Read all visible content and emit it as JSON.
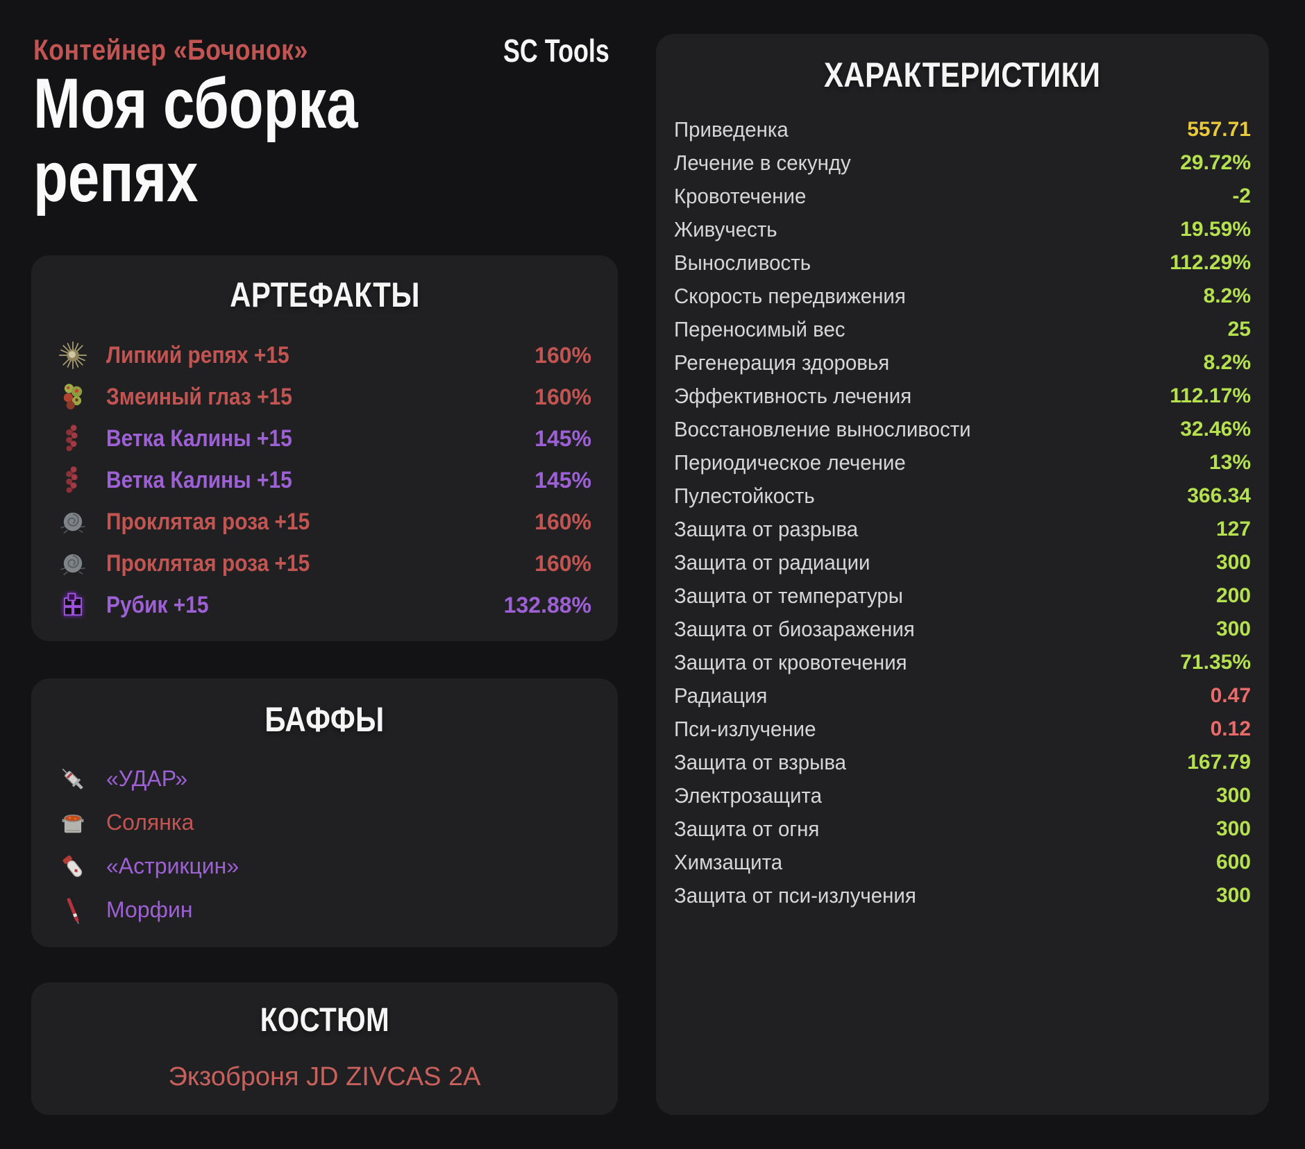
{
  "header": {
    "container_label": "Контейнер «Бочонок»",
    "build_title_line1": "Моя сборка",
    "build_title_line2": "репях",
    "logo": "SC Tools"
  },
  "artifacts_panel": {
    "title": "АРТЕФАКТЫ",
    "items": [
      {
        "name": "Липкий репях +15",
        "value": "160%",
        "color": "red",
        "icon": "burr-artifact-icon"
      },
      {
        "name": "Змеиный глаз +15",
        "value": "160%",
        "color": "red",
        "icon": "snake-eye-artifact-icon"
      },
      {
        "name": "Ветка Калины +15",
        "value": "145%",
        "color": "purple",
        "icon": "kalina-branch-artifact-icon"
      },
      {
        "name": "Ветка Калины +15",
        "value": "145%",
        "color": "purple",
        "icon": "kalina-branch-artifact-icon"
      },
      {
        "name": "Проклятая роза +15",
        "value": "160%",
        "color": "red",
        "icon": "cursed-rose-artifact-icon"
      },
      {
        "name": "Проклятая роза +15",
        "value": "160%",
        "color": "red",
        "icon": "cursed-rose-artifact-icon"
      },
      {
        "name": "Рубик +15",
        "value": "132.88%",
        "color": "purple",
        "icon": "rubik-cube-artifact-icon"
      }
    ]
  },
  "buffs_panel": {
    "title": "БАФФЫ",
    "items": [
      {
        "name": "«УДАР»",
        "color": "purple",
        "icon": "syringe-icon"
      },
      {
        "name": "Солянка",
        "color": "red",
        "icon": "soup-pot-icon"
      },
      {
        "name": "«Астрикцин»",
        "color": "purple",
        "icon": "medicine-tube-icon"
      },
      {
        "name": "Морфин",
        "color": "purple",
        "icon": "morphine-injector-icon"
      }
    ]
  },
  "suit_panel": {
    "title": "КОСТЮМ",
    "name": "Экзоброня JD ZIVCAS 2A"
  },
  "stats_panel": {
    "title": "ХАРАКТЕРИСТИКИ",
    "rows": [
      {
        "label": "Приведенка",
        "value": "557.71",
        "color": "gold"
      },
      {
        "label": "Лечение в секунду",
        "value": "29.72%",
        "color": "green"
      },
      {
        "label": "Кровотечение",
        "value": "-2",
        "color": "green"
      },
      {
        "label": "Живучесть",
        "value": "19.59%",
        "color": "green"
      },
      {
        "label": "Выносливость",
        "value": "112.29%",
        "color": "green"
      },
      {
        "label": "Скорость передвижения",
        "value": "8.2%",
        "color": "green"
      },
      {
        "label": "Переносимый вес",
        "value": "25",
        "color": "green"
      },
      {
        "label": "Регенерация здоровья",
        "value": "8.2%",
        "color": "green"
      },
      {
        "label": "Эффективность лечения",
        "value": "112.17%",
        "color": "green"
      },
      {
        "label": "Восстановление выносливости",
        "value": "32.46%",
        "color": "green"
      },
      {
        "label": "Периодическое лечение",
        "value": "13%",
        "color": "green"
      },
      {
        "label": "Пулестойкость",
        "value": "366.34",
        "color": "green"
      },
      {
        "label": "Защита от разрыва",
        "value": "127",
        "color": "green"
      },
      {
        "label": "Защита от радиации",
        "value": "300",
        "color": "green"
      },
      {
        "label": "Защита от температуры",
        "value": "200",
        "color": "green"
      },
      {
        "label": "Защита от биозаражения",
        "value": "300",
        "color": "green"
      },
      {
        "label": "Защита от кровотечения",
        "value": "71.35%",
        "color": "green"
      },
      {
        "label": "Радиация",
        "value": "0.47",
        "color": "red"
      },
      {
        "label": "Пси-излучение",
        "value": "0.12",
        "color": "red"
      },
      {
        "label": "Защита от взрыва",
        "value": "167.79",
        "color": "green"
      },
      {
        "label": "Электрозащита",
        "value": "300",
        "color": "green"
      },
      {
        "label": "Защита от огня",
        "value": "300",
        "color": "green"
      },
      {
        "label": "Химзащита",
        "value": "600",
        "color": "green"
      },
      {
        "label": "Защита от пси-излучения",
        "value": "300",
        "color": "green"
      }
    ]
  },
  "colors": {
    "page_bg": "#131315",
    "panel_bg": "#202022",
    "accent_red": "#c25452",
    "accent_purple": "#9d60d5",
    "value_green": "#b6e14e",
    "value_gold": "#e9ca3a",
    "value_red": "#eb6b6b"
  }
}
